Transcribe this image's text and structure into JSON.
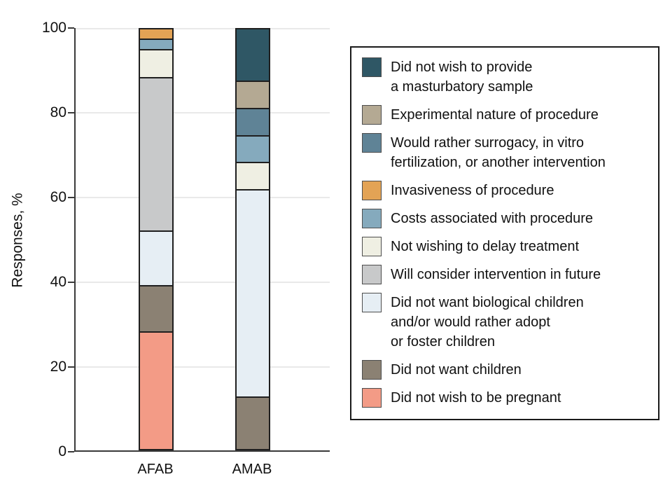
{
  "chart_data": {
    "type": "bar",
    "stacked": true,
    "title": "",
    "xlabel": "",
    "ylabel": "Responses, %",
    "ylim": [
      0,
      100
    ],
    "yticks": [
      0,
      20,
      40,
      60,
      80,
      100
    ],
    "grid": "horizontal",
    "legend_position": "right",
    "categories": [
      "AFAB",
      "AMAB"
    ],
    "series": [
      {
        "name": "Did not wish to provide\na masturbatory sample",
        "color": "#2F5765",
        "values": [
          0,
          12.5
        ]
      },
      {
        "name": "Experimental nature of procedure",
        "color": "#B4A993",
        "values": [
          0,
          6.25
        ]
      },
      {
        "name": "Would rather surrogacy, in vitro\nfertilization, or another intervention",
        "color": "#5F8396",
        "values": [
          0,
          6.25
        ]
      },
      {
        "name": "Invasiveness of procedure",
        "color": "#E3A355",
        "values": [
          2.2,
          0
        ]
      },
      {
        "name": "Costs associated with procedure",
        "color": "#85AABD",
        "values": [
          2.2,
          6.25
        ]
      },
      {
        "name": "Not wishing to delay treatment",
        "color": "#EFEFE3",
        "values": [
          6.5,
          6.25
        ]
      },
      {
        "name": "Will consider intervention in future",
        "color": "#C8C9CA",
        "values": [
          37,
          0
        ]
      },
      {
        "name": "Did not want biological children\nand/or would rather adopt\nor foster children",
        "color": "#E6EEF4",
        "values": [
          13,
          50
        ]
      },
      {
        "name": "Did not want children",
        "color": "#8B8173",
        "values": [
          10.9,
          12.5
        ]
      },
      {
        "name": "Did not wish to be pregnant",
        "color": "#F39B86",
        "values": [
          28.3,
          0
        ]
      }
    ],
    "stacking_note": "segments stack with the last-listed series at the bottom of each bar, mirroring reversed legend order"
  },
  "colors": {
    "background": "#FFFFFF",
    "axis": "#3A3A3A",
    "gridline": "#E9E9E9",
    "bar_outline": "#1F1F1F",
    "legend_border": "#1A1A1A",
    "text": "#111111"
  }
}
